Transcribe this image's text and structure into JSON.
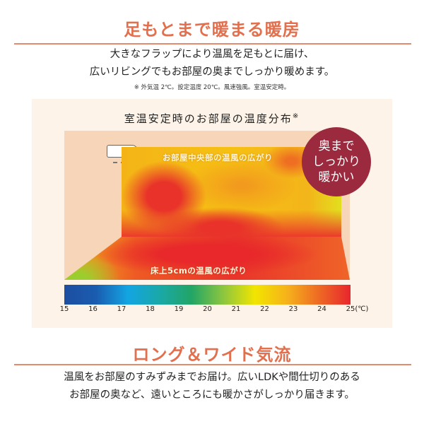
{
  "section1": {
    "heading": "足もとまで暖まる暖房",
    "body": [
      "大きなフラップにより温風を足もとに届け、",
      "広いリビングでもお部屋の奥までしっかり暖めます。"
    ],
    "note": "※ 外気温 2℃。設定温度 20℃。風速強風。室温安定時。"
  },
  "map": {
    "title": "室温安定時のお部屋の温度分布",
    "title_mark": "※",
    "wall_label": "お部屋中央部の温風の広がり",
    "floor_label": "床上5cmの温風の広がり",
    "badge": [
      "奥まで",
      "しっかり",
      "暖かい"
    ],
    "badge_color": "#9b2a3e",
    "scale": {
      "ticks": [
        "15",
        "16",
        "17",
        "18",
        "19",
        "20",
        "21",
        "22",
        "23",
        "24",
        "25"
      ],
      "unit": "(℃)",
      "colors": [
        "#1d4ea0",
        "#1a5cb0",
        "#13a5e2",
        "#1aa8a8",
        "#22a565",
        "#8cc63f",
        "#f2e500",
        "#f6b21a",
        "#ee6a24",
        "#e8262d"
      ]
    }
  },
  "section2": {
    "heading": "ロング＆ワイド気流",
    "body": [
      "温風をお部屋のすみずみまでお届け。広いLDKや間仕切りのある",
      "お部屋の奥など、遠いところにも暖かさがしっかり届きます。"
    ]
  },
  "colors": {
    "accent": "#e2704e"
  }
}
